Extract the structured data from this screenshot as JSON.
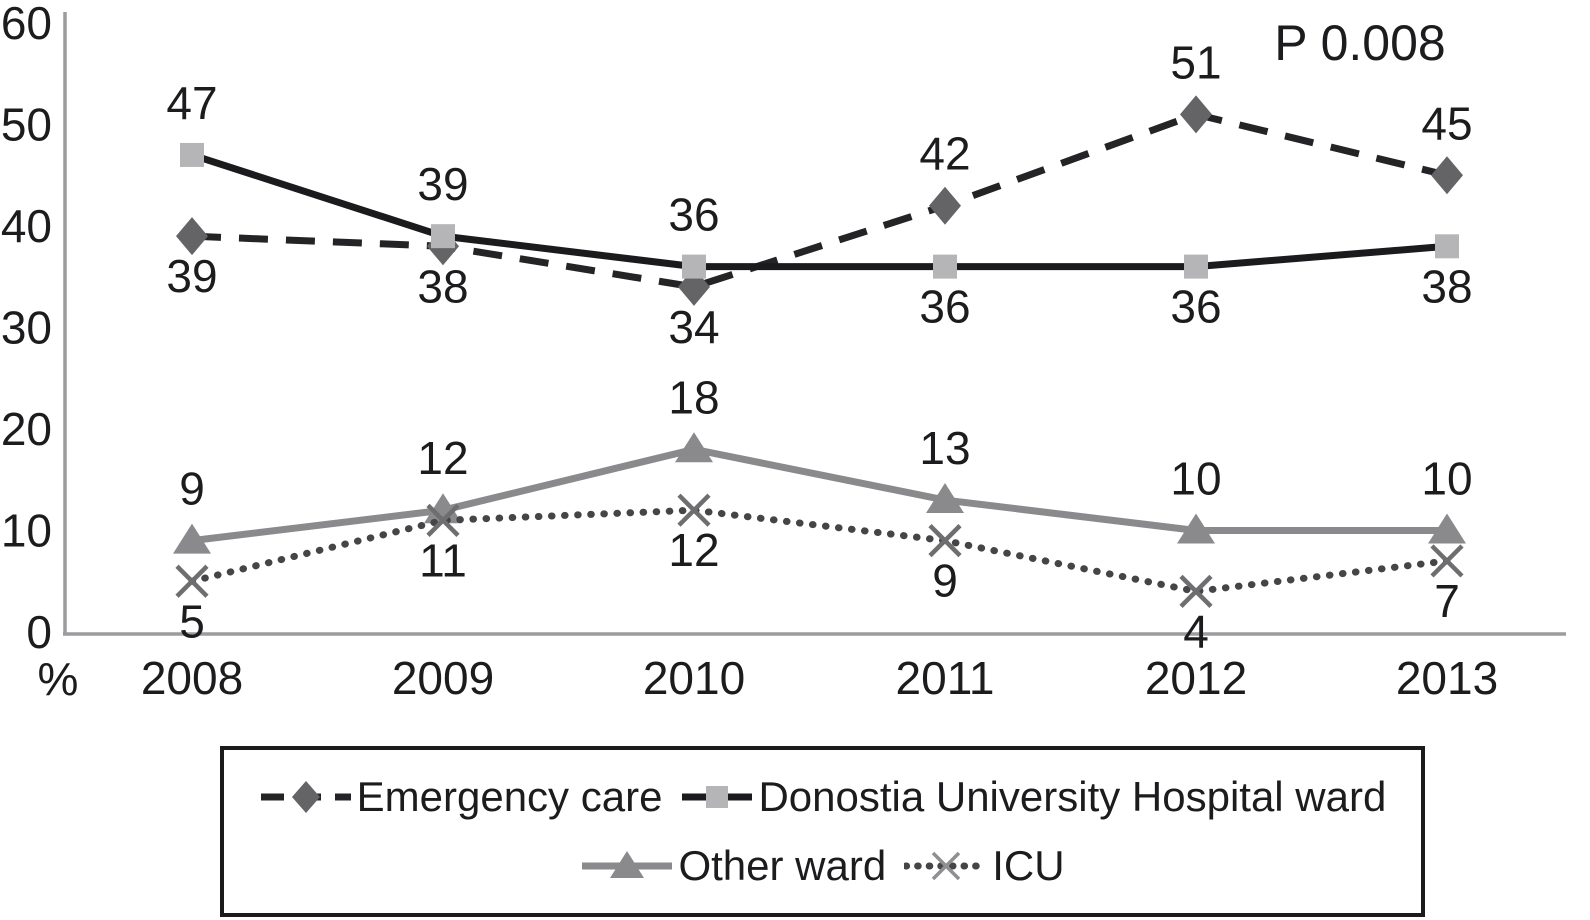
{
  "chart_data": {
    "type": "line",
    "x_categories": [
      "2008",
      "2009",
      "2010",
      "2011",
      "2012",
      "2013"
    ],
    "series": [
      {
        "name": "Emergency care",
        "values": [
          39,
          38,
          34,
          42,
          51,
          45
        ],
        "line_style": "dashed",
        "marker": "diamond",
        "line_color": "#242426",
        "marker_color": "#646467",
        "label_side": [
          "below",
          "below",
          "below",
          "above",
          "above",
          "above"
        ]
      },
      {
        "name": "Donostia University Hospital ward",
        "values": [
          47,
          39,
          36,
          36,
          36,
          38
        ],
        "line_style": "solid",
        "marker": "square",
        "line_color": "#1b1b1d",
        "marker_color": "#b5b5b7",
        "label_side": [
          "above",
          "above",
          "above",
          "below",
          "below",
          "below"
        ]
      },
      {
        "name": "Other ward",
        "values": [
          9,
          12,
          18,
          13,
          10,
          10
        ],
        "line_style": "solid",
        "marker": "triangle",
        "line_color": "#8a8a8d",
        "marker_color": "#8a8a8d",
        "label_side": [
          "above",
          "above",
          "above",
          "above",
          "above",
          "above"
        ]
      },
      {
        "name": "ICU",
        "values": [
          5,
          11,
          12,
          9,
          4,
          7
        ],
        "line_style": "dotted",
        "marker": "x",
        "line_color": "#454547",
        "marker_color": "#6e6e71",
        "label_side": [
          "below",
          "below",
          "below",
          "below",
          "below",
          "below"
        ]
      }
    ],
    "ylim": [
      0,
      60
    ],
    "yticks": [
      0,
      10,
      20,
      30,
      40,
      50,
      60
    ],
    "ylabel": "%",
    "xlabel": "",
    "annotation": "P 0.008",
    "grid": false,
    "legend_position": "bottom-box",
    "legend_rows": [
      [
        0,
        1
      ],
      [
        2,
        3
      ]
    ],
    "axis_color": "#9c9c9e",
    "text_color": "#1c1c1e"
  }
}
